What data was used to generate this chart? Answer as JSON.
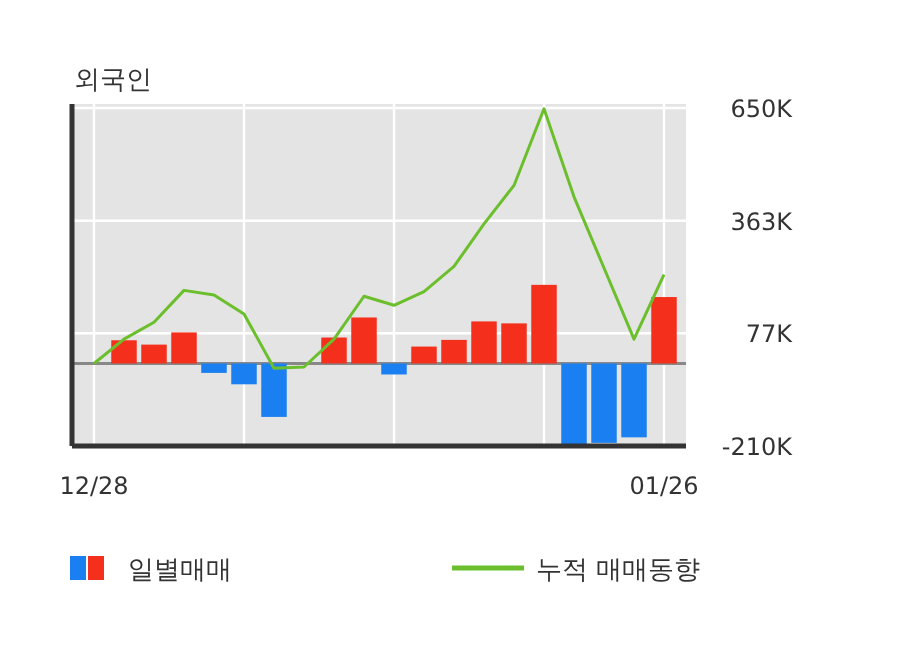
{
  "chart_data": {
    "type": "bar",
    "title": "외국인",
    "categories": [
      "12/28",
      null,
      null,
      null,
      null,
      null,
      null,
      null,
      null,
      null,
      null,
      null,
      null,
      null,
      null,
      null,
      null,
      null,
      null,
      "01/26"
    ],
    "series": [
      {
        "name": "일별매매",
        "colors": [
          "#f4301c",
          "#f4301c",
          "#f4301c",
          "#f4301c",
          "#1a7ff0",
          "#1a7ff0",
          "#1a7ff0",
          "#f4301c",
          "#f4301c",
          "#f4301c",
          "#1a7ff0",
          "#f4301c",
          "#f4301c",
          "#f4301c",
          "#f4301c",
          "#f4301c",
          "#1a7ff0",
          "#1a7ff0",
          "#1a7ff0",
          "#f4301c"
        ],
        "values": [
          0,
          59,
          48,
          79,
          -24,
          -53,
          -136,
          0,
          66,
          117,
          -28,
          43,
          60,
          107,
          102,
          200,
          -210,
          -202,
          -188,
          169
        ]
      },
      {
        "name": "누적 매매동향",
        "type": "line",
        "color": "#6cbf2c",
        "values": [
          0,
          62,
          105,
          186,
          174,
          126,
          -12,
          -9,
          62,
          171,
          148,
          183,
          247,
          355,
          453,
          648,
          424,
          243,
          62,
          226
        ]
      }
    ],
    "ylim": [
      -210,
      650
    ],
    "yticks": [
      {
        "value": 650,
        "label": "650K"
      },
      {
        "value": 363,
        "label": "363K"
      },
      {
        "value": 77,
        "label": "77K"
      },
      {
        "value": -210,
        "label": "-210K"
      }
    ],
    "grid": true,
    "legend": "bottom"
  }
}
